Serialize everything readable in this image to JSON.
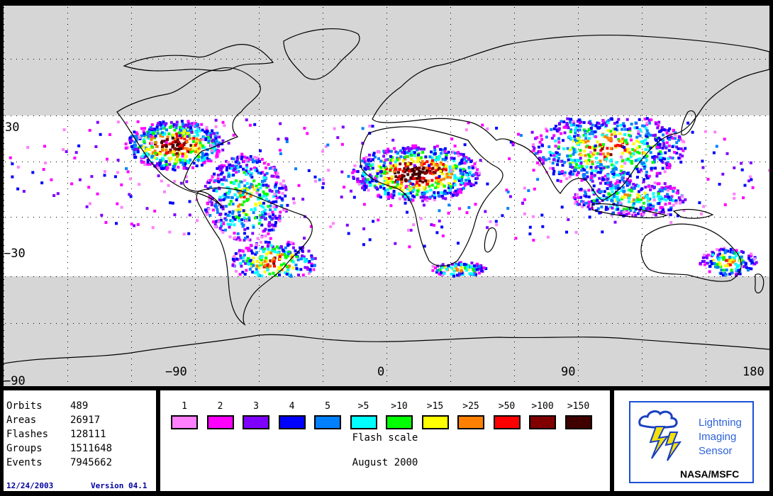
{
  "map": {
    "lat_labels": [
      "30",
      "−30",
      "−90"
    ],
    "lon_labels": [
      "−90",
      "0",
      "90",
      "180"
    ],
    "colors": {
      "land_outline": "#000000",
      "no_coverage": "#d6d6d6",
      "coverage_band": "#ffffff",
      "grid_dots": "#000000"
    }
  },
  "stats": {
    "rows": [
      {
        "label": "Orbits",
        "value": "489"
      },
      {
        "label": "Areas",
        "value": "26917"
      },
      {
        "label": "Flashes",
        "value": "128111"
      },
      {
        "label": "Groups",
        "value": "1511648"
      },
      {
        "label": "Events",
        "value": "7945662"
      }
    ],
    "date": "12/24/2003",
    "version": "Version 04.1"
  },
  "scale": {
    "bins": [
      {
        "label": "1",
        "color": "#ff80ff"
      },
      {
        "label": "2",
        "color": "#ff00ff"
      },
      {
        "label": "3",
        "color": "#8000ff"
      },
      {
        "label": "4",
        "color": "#0000ff"
      },
      {
        "label": "5",
        "color": "#0080ff"
      },
      {
        "label": ">5",
        "color": "#00ffff"
      },
      {
        "label": ">10",
        "color": "#00ff00"
      },
      {
        "label": ">15",
        "color": "#ffff00"
      },
      {
        "label": ">25",
        "color": "#ff8000"
      },
      {
        "label": ">50",
        "color": "#ff0000"
      },
      {
        "label": ">100",
        "color": "#800000"
      },
      {
        "label": ">150",
        "color": "#400000"
      }
    ],
    "title": "Flash scale",
    "period": "August 2000"
  },
  "logo": {
    "lines": [
      "Lightning",
      "Imaging",
      "Sensor"
    ],
    "org": "NASA/MSFC",
    "icon": "lightning-cloud-icon"
  }
}
